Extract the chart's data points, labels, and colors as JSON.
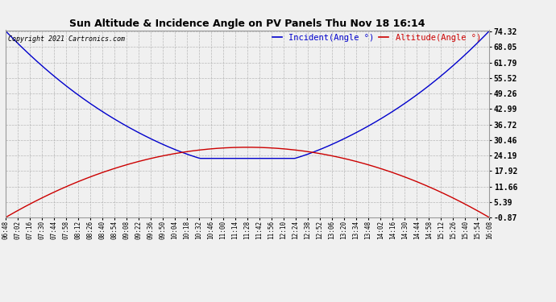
{
  "title": "Sun Altitude & Incidence Angle on PV Panels Thu Nov 18 16:14",
  "copyright": "Copyright 2021 Cartronics.com",
  "legend_incident": "Incident(Angle °)",
  "legend_altitude": "Altitude(Angle °)",
  "incident_color": "#0000cc",
  "altitude_color": "#cc0000",
  "background_color": "#f0f0f0",
  "grid_color": "#aaaaaa",
  "yticks": [
    74.32,
    68.05,
    61.79,
    55.52,
    49.26,
    42.99,
    36.72,
    30.46,
    24.19,
    17.92,
    11.66,
    5.39,
    -0.87
  ],
  "ymin": -0.87,
  "ymax": 74.32,
  "xtick_labels": [
    "06:48",
    "07:02",
    "07:16",
    "07:30",
    "07:44",
    "07:58",
    "08:12",
    "08:26",
    "08:40",
    "08:54",
    "09:08",
    "09:22",
    "09:36",
    "09:50",
    "10:04",
    "10:18",
    "10:32",
    "10:46",
    "11:00",
    "11:14",
    "11:28",
    "11:42",
    "11:56",
    "12:10",
    "12:24",
    "12:38",
    "12:52",
    "13:06",
    "13:20",
    "13:34",
    "13:48",
    "14:02",
    "14:16",
    "14:30",
    "14:44",
    "14:58",
    "15:12",
    "15:26",
    "15:40",
    "15:54",
    "16:08"
  ]
}
